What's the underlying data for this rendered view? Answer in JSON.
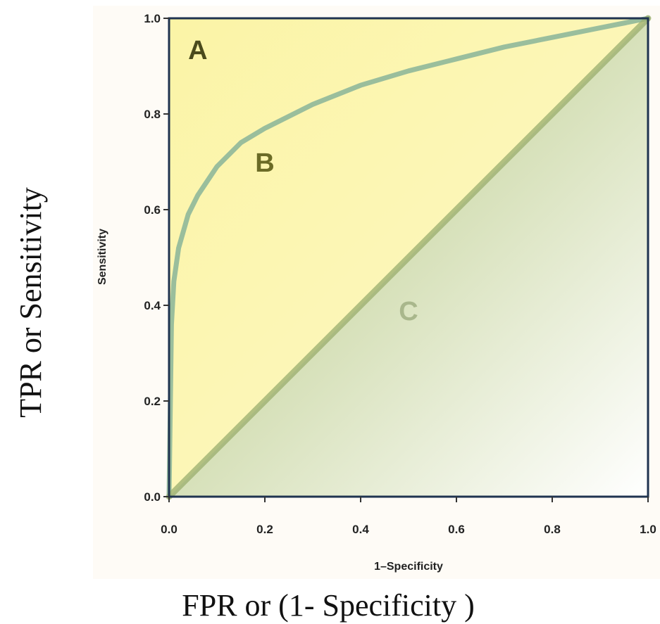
{
  "outer_labels": {
    "y": "TPR or Sensitivity",
    "x": "FPR or (1- Specificity )"
  },
  "chart_data": {
    "type": "line",
    "xlabel": "1–Specificity",
    "ylabel": "Sensitivity",
    "xlim": [
      0.0,
      1.0
    ],
    "ylim": [
      0.0,
      1.0
    ],
    "x_ticks": [
      "0.0",
      "0.2",
      "0.4",
      "0.6",
      "0.8",
      "1.0"
    ],
    "y_ticks": [
      "0.0",
      "0.2",
      "0.4",
      "0.6",
      "0.8",
      "1.0"
    ],
    "grid": false,
    "series": [
      {
        "name": "",
        "x": [
          0.0,
          0.005,
          0.01,
          0.02,
          0.04,
          0.06,
          0.1,
          0.15,
          0.2,
          0.3,
          0.4,
          0.5,
          0.6,
          0.7,
          0.8,
          0.9,
          1.0
        ],
        "y": [
          0.0,
          0.36,
          0.45,
          0.52,
          0.59,
          0.63,
          0.69,
          0.74,
          0.77,
          0.82,
          0.86,
          0.89,
          0.915,
          0.94,
          0.96,
          0.98,
          1.0
        ],
        "color": "#8fb89a"
      },
      {
        "name": "",
        "x": [
          0.0,
          1.0
        ],
        "y": [
          0.0,
          1.0
        ],
        "color": "#9aae6e"
      }
    ],
    "annotations": [
      {
        "text": "A",
        "x": 0.06,
        "y": 0.935,
        "color": "#4a4a1c"
      },
      {
        "text": "B",
        "x": 0.2,
        "y": 0.7,
        "color": "#6b6b26"
      },
      {
        "text": "C",
        "x": 0.5,
        "y": 0.39,
        "color": "#a9b78c"
      }
    ],
    "colors": {
      "upper_region": "#fbf6b2",
      "lower_region_dark": "#c6d49a",
      "lower_region_light": "#ffffff",
      "frame": "#1f3350",
      "background": "#fefbf7"
    }
  }
}
